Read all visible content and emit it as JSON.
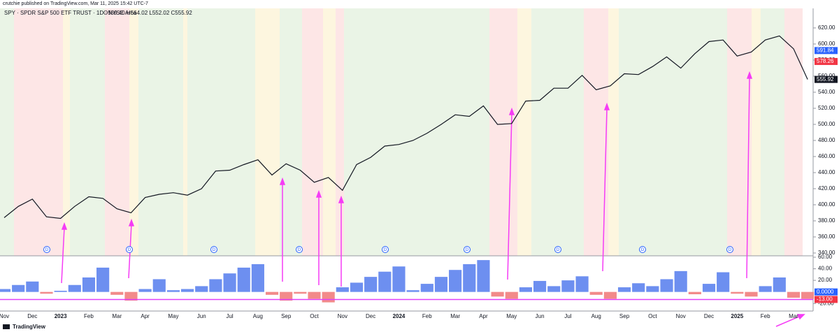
{
  "header": {
    "publisher": "crutchie published on TradingView.com, Mar 11, 2025 15:42 UTC-7",
    "symbol": "SPY · SPDR S&P 500 ETF TRUST · 1D · NYSE Arca",
    "ohlc": "O559.40 H564.02 L552.02 C555.92"
  },
  "footer": "TradingView",
  "chart_data": [
    {
      "type": "line",
      "categories": [
        "Nov",
        null,
        "Dec",
        null,
        "2023",
        null,
        "Feb",
        null,
        "Mar",
        null,
        "Apr",
        null,
        "May",
        null,
        "Jun",
        null,
        "Jul",
        null,
        "Aug",
        null,
        "Sep",
        null,
        "Oct",
        null,
        "Nov",
        null,
        "Dec",
        null,
        "2024",
        null,
        "Feb",
        null,
        "Mar",
        null,
        "Apr",
        null,
        "May",
        null,
        "Jun",
        null,
        "Jul",
        null,
        "Aug",
        null,
        "Sep",
        null,
        "Oct",
        null,
        "Nov",
        null,
        "Dec",
        null,
        "2025",
        null,
        "Feb",
        null,
        "Mar",
        null
      ],
      "series": [
        {
          "color": "#131722",
          "values": [
            384,
            398,
            407,
            385,
            383,
            398,
            410,
            408,
            395,
            390,
            409,
            413,
            415,
            412,
            420,
            442,
            443,
            450,
            456,
            437,
            451,
            443,
            428,
            434,
            418,
            450,
            459,
            473,
            475,
            480,
            489,
            500,
            512,
            510,
            523,
            500,
            501,
            529,
            530,
            545,
            545,
            561,
            543,
            548,
            563,
            562,
            572,
            584,
            570,
            588,
            603,
            605,
            585,
            590,
            605,
            610,
            594,
            556
          ]
        }
      ],
      "price_tags": [
        {
          "value": 591.84,
          "color": "#2962ff"
        },
        {
          "value": 578.26,
          "color": "#f23645"
        },
        {
          "value": 555.92,
          "color": "#131722"
        }
      ],
      "dividend_label": "D",
      "ylim": [
        336.5,
        644.3
      ],
      "yticks": [
        {
          "value": 340,
          "label": "340.00"
        },
        {
          "value": 360,
          "label": "360.00"
        },
        {
          "value": 380,
          "label": "380.00"
        },
        {
          "value": 400,
          "label": "400.00"
        },
        {
          "value": 420,
          "label": "420.00"
        },
        {
          "value": 440,
          "label": "440.00"
        },
        {
          "value": 460,
          "label": "460.00"
        },
        {
          "value": 480,
          "label": "480.00"
        },
        {
          "value": 500,
          "label": "500.00"
        },
        {
          "value": 520,
          "label": "520.00"
        },
        {
          "value": 540,
          "label": "540.00"
        },
        {
          "value": 560,
          "label": "560.00"
        },
        {
          "value": 580,
          "label": "580.00"
        },
        {
          "value": 600,
          "label": "600.00"
        },
        {
          "value": 620,
          "label": "620.00"
        }
      ]
    },
    {
      "type": "bar",
      "values": [
        5,
        12,
        18,
        -3,
        2,
        12,
        25,
        42,
        -5,
        -15,
        5,
        22,
        3,
        5,
        10,
        22,
        32,
        42,
        48,
        -5,
        -15,
        -3,
        -12,
        -18,
        8,
        16,
        26,
        35,
        44,
        3,
        14,
        26,
        38,
        48,
        55,
        -8,
        -12,
        8,
        19,
        10,
        20,
        27,
        -5,
        -12,
        8,
        15,
        10,
        22,
        36,
        -4,
        14,
        34,
        -3,
        -8,
        10,
        25,
        -10,
        -12
      ],
      "colors": {
        "positive": "#6d8ff0",
        "negative": "#f28a8a"
      },
      "ylim": [
        -33,
        62.4
      ],
      "yticks": [
        {
          "value": 60,
          "label": "60.00"
        },
        {
          "value": 40,
          "label": "40.00"
        },
        {
          "value": 20,
          "label": "20.00"
        },
        {
          "value": -20,
          "label": "-20.00"
        }
      ],
      "zero_tag": {
        "value": 0,
        "label": "0.0000",
        "color": "#2962ff"
      },
      "level": {
        "value": -13,
        "label": "-13.00",
        "color": "#e040fb"
      }
    }
  ]
}
